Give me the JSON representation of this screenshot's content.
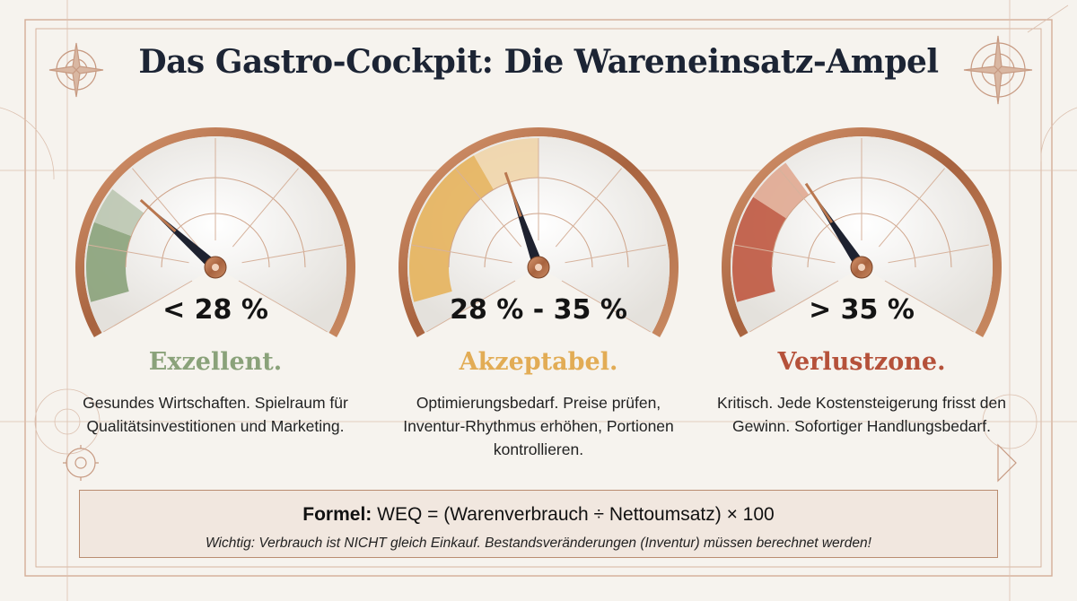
{
  "title": "Das Gastro-Cockpit: Die Wareneinsatz-Ampel",
  "gauges": [
    {
      "range": "< 28 %",
      "status": "Exzellent.",
      "description": "Gesundes Wirtschaften. Spielraum für Qualitätsinvestitionen und Marketing.",
      "accent_color": "#8aa27a",
      "zone_color": "#8aa27a",
      "zone_light_color": "#b8c4ae",
      "zone_fraction": 0.28,
      "needle_fraction": 0.3
    },
    {
      "range": "28 % - 35 %",
      "status": "Akzeptabel.",
      "description": "Optimierungsbedarf. Preise prüfen, Inventur-Rhythmus erhöhen, Portionen kontrollieren.",
      "accent_color": "#e2ac55",
      "zone_color": "#e6b25c",
      "zone_light_color": "#f0d3a6",
      "zone_fraction": 0.5,
      "needle_fraction": 0.42
    },
    {
      "range": "> 35 %",
      "status": "Verlustzone.",
      "description": "Kritisch. Jede Kostensteigerung frisst den Gewinn. Sofortiger Handlungsbedarf.",
      "accent_color": "#b5513a",
      "zone_color": "#bf5840",
      "zone_light_color": "#dfa48c",
      "zone_fraction": 0.35,
      "needle_fraction": 0.36
    }
  ],
  "formula": {
    "label": "Formel:",
    "text": " WEQ = (Warenverbrauch ÷ Nettoumsatz) × 100",
    "note": "Wichtig: Verbrauch ist NICHT gleich Einkauf. Bestandsveränderungen (Inventur) müssen berechnet werden!"
  },
  "colors": {
    "background": "#f6f3ee",
    "frame": "#c79a82",
    "copper": "#b9774f",
    "title": "#1c2434"
  },
  "icons": [
    "compass-rose-icon",
    "compass-rose-icon",
    "gear-icon",
    "arrow-icon"
  ]
}
